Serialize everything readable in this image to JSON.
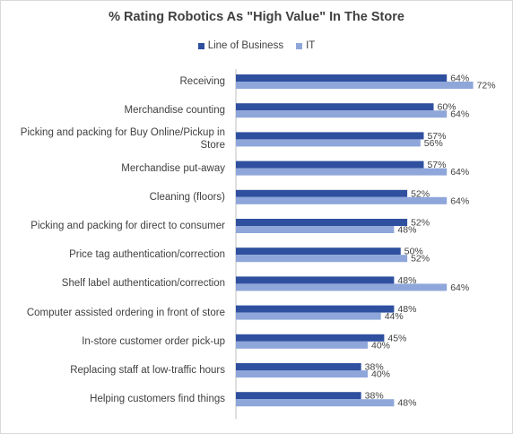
{
  "chart_data": {
    "type": "bar",
    "orientation": "horizontal",
    "title": "% Rating Robotics As \"High Value\" In The Store",
    "legend_position": "top",
    "grid": false,
    "xlim": [
      0,
      80
    ],
    "categories": [
      "Receiving",
      "Merchandise counting",
      "Picking and packing for Buy Online/Pickup in Store",
      "Merchandise put-away",
      "Cleaning (floors)",
      "Picking and packing for direct to consumer",
      "Price tag authentication/correction",
      "Shelf label authentication/correction",
      "Computer assisted ordering in front of store",
      "In-store customer order pick-up",
      "Replacing staff at low-traffic hours",
      "Helping customers find things"
    ],
    "series": [
      {
        "name": "Line of Business",
        "color": "#2f4f9f",
        "values": [
          64,
          60,
          57,
          57,
          52,
          52,
          50,
          48,
          48,
          45,
          38,
          38
        ]
      },
      {
        "name": "IT",
        "color": "#8fa6da",
        "values": [
          72,
          64,
          56,
          64,
          64,
          48,
          52,
          64,
          44,
          40,
          40,
          48
        ]
      }
    ],
    "value_suffix": "%"
  }
}
